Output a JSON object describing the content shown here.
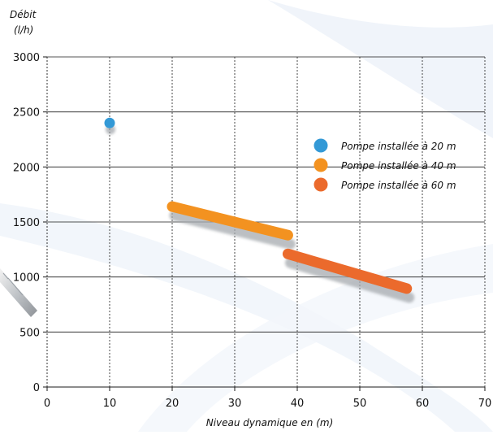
{
  "chart_data": {
    "type": "line",
    "ylabel_line1": "Débit",
    "ylabel_line2": "(l/h)",
    "xlabel": "Niveau dynamique en (m)",
    "xlim": [
      0,
      70
    ],
    "ylim": [
      0,
      3000
    ],
    "x_ticks": [
      0,
      10,
      20,
      30,
      40,
      50,
      60,
      70
    ],
    "y_ticks": [
      0,
      500,
      1000,
      1500,
      2000,
      2500,
      3000
    ],
    "grid": {
      "vertical": "dotted",
      "horizontal": "solid"
    },
    "legend_position": "right",
    "series": [
      {
        "name": "Pompe installée à 20 m",
        "color": "#3399d6",
        "marker": "point",
        "points": [
          [
            10,
            2400
          ]
        ]
      },
      {
        "name": "Pompe installée à 40 m",
        "color": "#f39220",
        "marker": "line",
        "points": [
          [
            20,
            1640
          ],
          [
            38.5,
            1380
          ]
        ]
      },
      {
        "name": "Pompe installée à 60 m",
        "color": "#eb6a2c",
        "marker": "line",
        "points": [
          [
            38.5,
            1210
          ],
          [
            57.5,
            895
          ]
        ]
      }
    ]
  }
}
